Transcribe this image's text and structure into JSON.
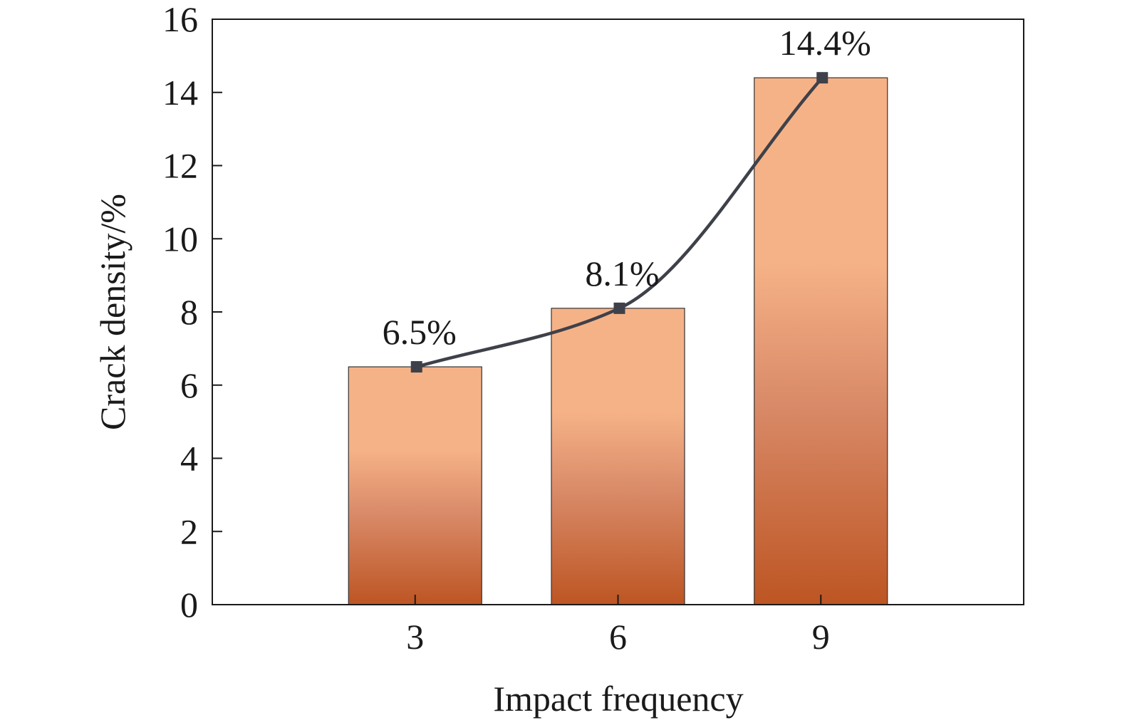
{
  "chart_data": {
    "type": "bar",
    "title": "",
    "xlabel": "Impact frequency",
    "ylabel": "Crack density/%",
    "categories": [
      "3",
      "6",
      "9"
    ],
    "series": [
      {
        "values": [
          6.5,
          8.1,
          14.4
        ],
        "labels": [
          "6.5%",
          "8.1%",
          "14.4%"
        ]
      }
    ],
    "overlay_line": {
      "values": [
        6.5,
        8.1,
        14.4
      ],
      "marker": "square",
      "smooth": true
    },
    "ylim": [
      0,
      16
    ],
    "yticks": [
      0,
      2,
      4,
      6,
      8,
      10,
      12,
      14,
      16
    ],
    "grid": false,
    "legend": "none",
    "colors": {
      "bar_top": "#f6b287",
      "bar_mid": "#d98a68",
      "bar_bottom": "#bd5523",
      "bar_stroke": "#333333",
      "line": "#3e4149",
      "marker": "#3e4149",
      "axis": "#1a1a1a"
    }
  }
}
